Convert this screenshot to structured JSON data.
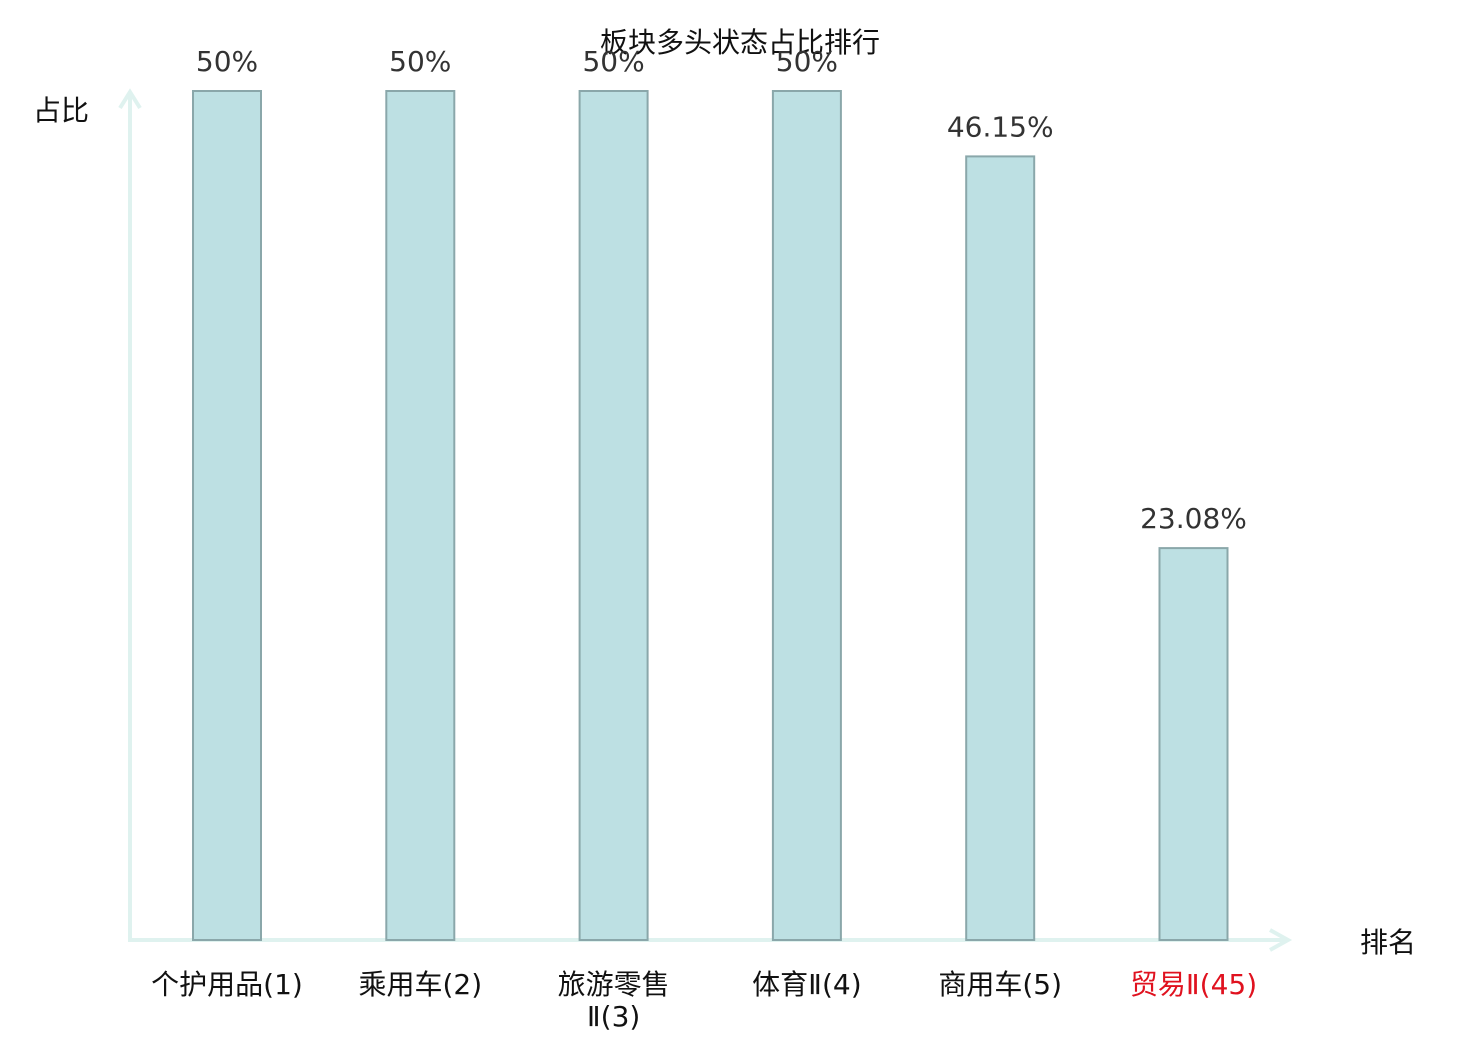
{
  "chart_data": {
    "type": "bar",
    "title": "板块多头状态占比排行",
    "ylabel": "占比",
    "xlabel": "排名",
    "categories": [
      [
        "个护用品(1)"
      ],
      [
        "乘用车(2)"
      ],
      [
        "旅游零售",
        "Ⅱ(3)"
      ],
      [
        "体育Ⅱ(4)"
      ],
      [
        "商用车(5)"
      ],
      [
        "贸易Ⅱ(45)"
      ]
    ],
    "values": [
      50,
      50,
      50,
      50,
      46.15,
      23.08
    ],
    "value_labels": [
      "50%",
      "50%",
      "50%",
      "50%",
      "46.15%",
      "23.08%"
    ],
    "highlight_index": 5,
    "ylim": [
      0,
      50
    ],
    "grid": false
  },
  "colors": {
    "bar_fill": "#bde0e3",
    "bar_stroke": "#8aa7aa",
    "axis": "#dff2ef",
    "highlight_label": "#e0121f",
    "value_label": "#333333"
  }
}
